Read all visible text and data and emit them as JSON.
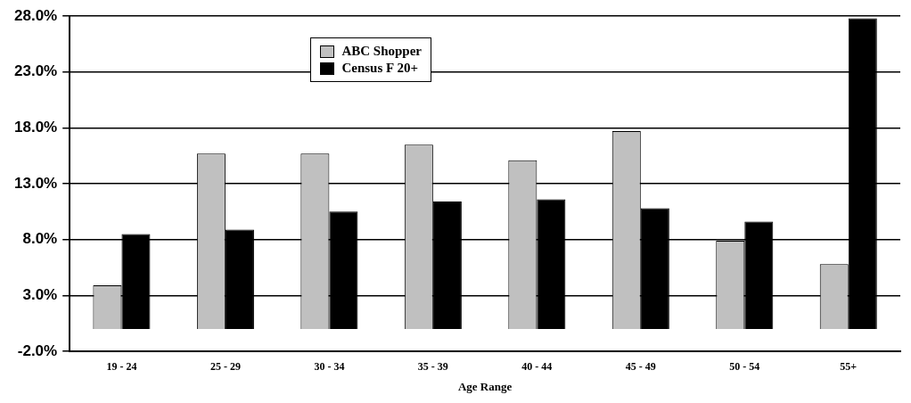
{
  "chart_data": {
    "type": "bar",
    "xlabel": "Age Range",
    "categories": [
      "19 - 24",
      "25 - 29",
      "30 - 34",
      "35 - 39",
      "40 - 44",
      "45 - 49",
      "50 - 54",
      "55+"
    ],
    "series": [
      {
        "name": "ABC Shopper",
        "color": "#c0c0c0",
        "values": [
          3.9,
          15.7,
          15.7,
          16.5,
          15.1,
          17.7,
          7.9,
          5.8
        ]
      },
      {
        "name": "Census F 20+",
        "color": "#000000",
        "values": [
          8.5,
          8.9,
          10.5,
          11.4,
          11.6,
          10.8,
          9.6,
          27.8
        ]
      }
    ],
    "ylim": [
      -2,
      28
    ],
    "yticks": [
      {
        "value": -2,
        "label": "-2.0%"
      },
      {
        "value": 3,
        "label": "3.0%"
      },
      {
        "value": 8,
        "label": "8.0%"
      },
      {
        "value": 13,
        "label": "13.0%"
      },
      {
        "value": 18,
        "label": "18.0%"
      },
      {
        "value": 23,
        "label": "23.0%"
      },
      {
        "value": 28,
        "label": "28.0%"
      }
    ],
    "grid": "y",
    "legend": "top"
  }
}
